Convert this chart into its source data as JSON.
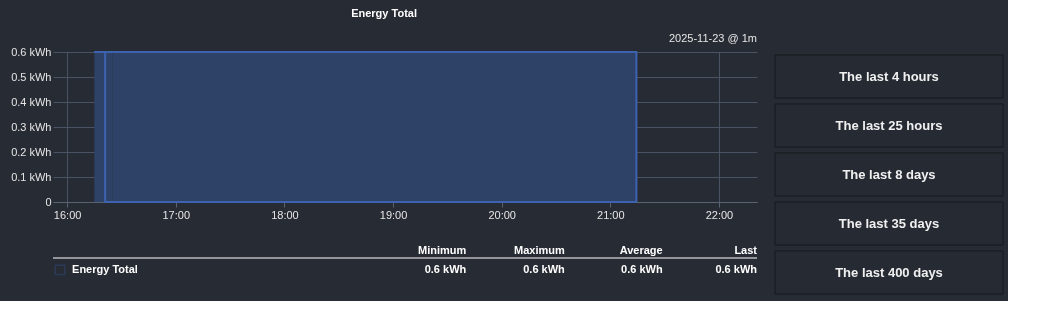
{
  "chart_data": {
    "type": "area",
    "title": "Energy Total",
    "subtitle": "2025-11-23 @ 1m",
    "x": [
      16.25,
      16.35,
      16.38,
      16.42,
      21.24
    ],
    "series": [
      {
        "name": "Energy Total",
        "color": "#2e4166",
        "values": [
          0.6,
          0.6,
          null,
          0.6,
          0.6
        ]
      }
    ],
    "xlim": [
      15.87,
      22.35
    ],
    "xticks": [
      {
        "value": 16,
        "label": "16:00"
      },
      {
        "value": 17,
        "label": "17:00"
      },
      {
        "value": 18,
        "label": "18:00"
      },
      {
        "value": 19,
        "label": "19:00"
      },
      {
        "value": 20,
        "label": "20:00"
      },
      {
        "value": 21,
        "label": "21:00"
      },
      {
        "value": 22,
        "label": "22:00"
      }
    ],
    "ylim": [
      0,
      0.6
    ],
    "yticks": [
      0,
      {
        "value": 0.1,
        "label": "0.1 kWh"
      },
      {
        "value": 0.2,
        "label": "0.2 kWh"
      },
      {
        "value": 0.3,
        "label": "0.3 kWh"
      },
      {
        "value": 0.4,
        "label": "0.4 kWh"
      },
      {
        "value": 0.5,
        "label": "0.5 kWh"
      },
      {
        "value": 0.6,
        "label": "0.6 kWh"
      }
    ],
    "grid": true,
    "legend": "bottom",
    "annotations": [
      "Minimum",
      "Maximum",
      "Average",
      "Last",
      "0.6 kWh",
      "0.6 kWh",
      "0.6 kWh",
      "0.6 kWh",
      "The last 4 hours",
      "The last 25 hours",
      "The last 8 days",
      "The last 35 days",
      "The last 400 days"
    ]
  }
}
